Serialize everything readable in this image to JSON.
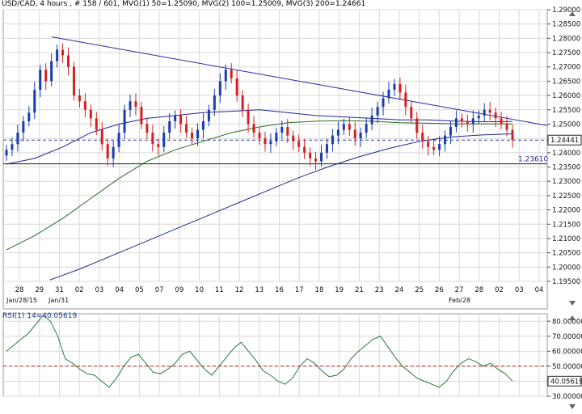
{
  "header": {
    "symbol": "USD/CAD",
    "timeframe": "4 hours",
    "bars": "# 158 / 601",
    "mvg1": "MVG(1) 50=1.25090",
    "mvg2": "MVG(2) 100=1.25009",
    "mvg3": "MVG(3) 200=1.24661"
  },
  "rsi_header": "RSI(1) 14=40.05619",
  "colors": {
    "up_candle": "#1a3db0",
    "down_candle": "#d42020",
    "trendline": "#2a2aa0",
    "ma50": "#22229a",
    "ma100": "#2a6a2a",
    "ma200": "#1a2a8a",
    "rsi_line": "#2a7a3a",
    "dashed_line": "#3a3aa8",
    "rsi_level": "#c02020",
    "grid": "#d8d8d8"
  },
  "chart_data": [
    {
      "type": "line",
      "title": "USD/CAD , 4 hours",
      "series": [
        {
          "name": "MVG(1) 50",
          "last_value": 1.2509
        },
        {
          "name": "MVG(2) 100",
          "last_value": 1.25009
        },
        {
          "name": "MVG(3) 200",
          "last_value": 1.24661
        }
      ],
      "ylim": [
        1.195,
        1.29
      ],
      "y_ticks": [
        "1.29000",
        "1.28500",
        "1.28000",
        "1.27500",
        "1.27000",
        "1.26500",
        "1.26000",
        "1.25500",
        "1.25000",
        "1.24500",
        "1.24000",
        "1.23500",
        "1.23000",
        "1.22500",
        "1.22000",
        "1.21500",
        "1.21000",
        "1.20500",
        "1.20000",
        "1.19500"
      ],
      "x_ticks": [
        "28",
        "29",
        "31",
        "02",
        "03",
        "04",
        "05",
        "07",
        "09",
        "10",
        "11",
        "12",
        "13",
        "16",
        "17",
        "18",
        "19",
        "21",
        "23",
        "24",
        "25",
        "26",
        "27",
        "28",
        "02",
        "03",
        "04"
      ],
      "month_labels": [
        "Jan/28/15",
        "Jan/31",
        "Feb/28"
      ],
      "last_price_label": "1.24441",
      "support_label": "1.23610",
      "last_price": 1.24441,
      "support_level": 1.2361,
      "trendline": [
        {
          "x": 0.05,
          "y": 1.2805
        },
        {
          "x": 1.0,
          "y": 1.2495
        }
      ],
      "candles_close": [
        1.241,
        1.243,
        1.247,
        1.251,
        1.254,
        1.262,
        1.269,
        1.265,
        1.272,
        1.276,
        1.274,
        1.27,
        1.26,
        1.258,
        1.255,
        1.252,
        1.248,
        1.243,
        1.238,
        1.242,
        1.247,
        1.255,
        1.258,
        1.256,
        1.25,
        1.247,
        1.243,
        1.242,
        1.247,
        1.251,
        1.253,
        1.25,
        1.247,
        1.245,
        1.248,
        1.251,
        1.255,
        1.26,
        1.265,
        1.269,
        1.266,
        1.26,
        1.255,
        1.25,
        1.247,
        1.245,
        1.243,
        1.244,
        1.247,
        1.249,
        1.246,
        1.244,
        1.242,
        1.24,
        1.238,
        1.237,
        1.24,
        1.243,
        1.246,
        1.248,
        1.25,
        1.248,
        1.245,
        1.247,
        1.25,
        1.253,
        1.256,
        1.259,
        1.262,
        1.264,
        1.261,
        1.256,
        1.252,
        1.247,
        1.244,
        1.242,
        1.241,
        1.243,
        1.246,
        1.249,
        1.252,
        1.251,
        1.25,
        1.252,
        1.253,
        1.255,
        1.254,
        1.252,
        1.25,
        1.248,
        1.2444
      ],
      "ma50": [
        1.236,
        1.238,
        1.242,
        1.247,
        1.25,
        1.252,
        1.253,
        1.254,
        1.2545,
        1.255,
        1.254,
        1.253,
        1.2525,
        1.252,
        1.2515,
        1.2515,
        1.251,
        1.2508,
        1.2509
      ],
      "ma100": [
        1.206,
        1.211,
        1.217,
        1.224,
        1.231,
        1.237,
        1.241,
        1.244,
        1.247,
        1.249,
        1.2505,
        1.251,
        1.2512,
        1.251,
        1.2505,
        1.2503,
        1.2501,
        1.2501,
        1.2501
      ],
      "ma200": [
        1.1955,
        1.1995,
        1.204,
        1.2085,
        1.213,
        1.2175,
        1.222,
        1.2265,
        1.231,
        1.235,
        1.2385,
        1.2415,
        1.244,
        1.2455,
        1.2462,
        1.2466
      ]
    },
    {
      "type": "line",
      "title": "RSI(1) 14",
      "series": [
        {
          "name": "RSI(1) 14",
          "values": [
            60,
            64,
            68,
            72,
            78,
            84,
            80,
            70,
            55,
            52,
            48,
            45,
            44,
            40,
            36,
            42,
            50,
            56,
            58,
            52,
            46,
            45,
            48,
            52,
            58,
            60,
            54,
            48,
            44,
            50,
            56,
            62,
            66,
            60,
            54,
            47,
            44,
            40,
            38,
            42,
            50,
            55,
            52,
            47,
            43,
            44,
            48,
            55,
            60,
            64,
            68,
            70,
            63,
            56,
            50,
            46,
            42,
            40,
            38,
            36,
            40,
            47,
            52,
            55,
            53,
            50,
            52,
            48,
            45,
            40.06
          ]
        }
      ],
      "ylim": [
        30,
        85
      ],
      "y_ticks": [
        "80.00000",
        "70.00000",
        "60.00000",
        "50.00000",
        "40.00000",
        "30.00000"
      ],
      "level": 50,
      "last_value_label": "40.05619"
    }
  ]
}
